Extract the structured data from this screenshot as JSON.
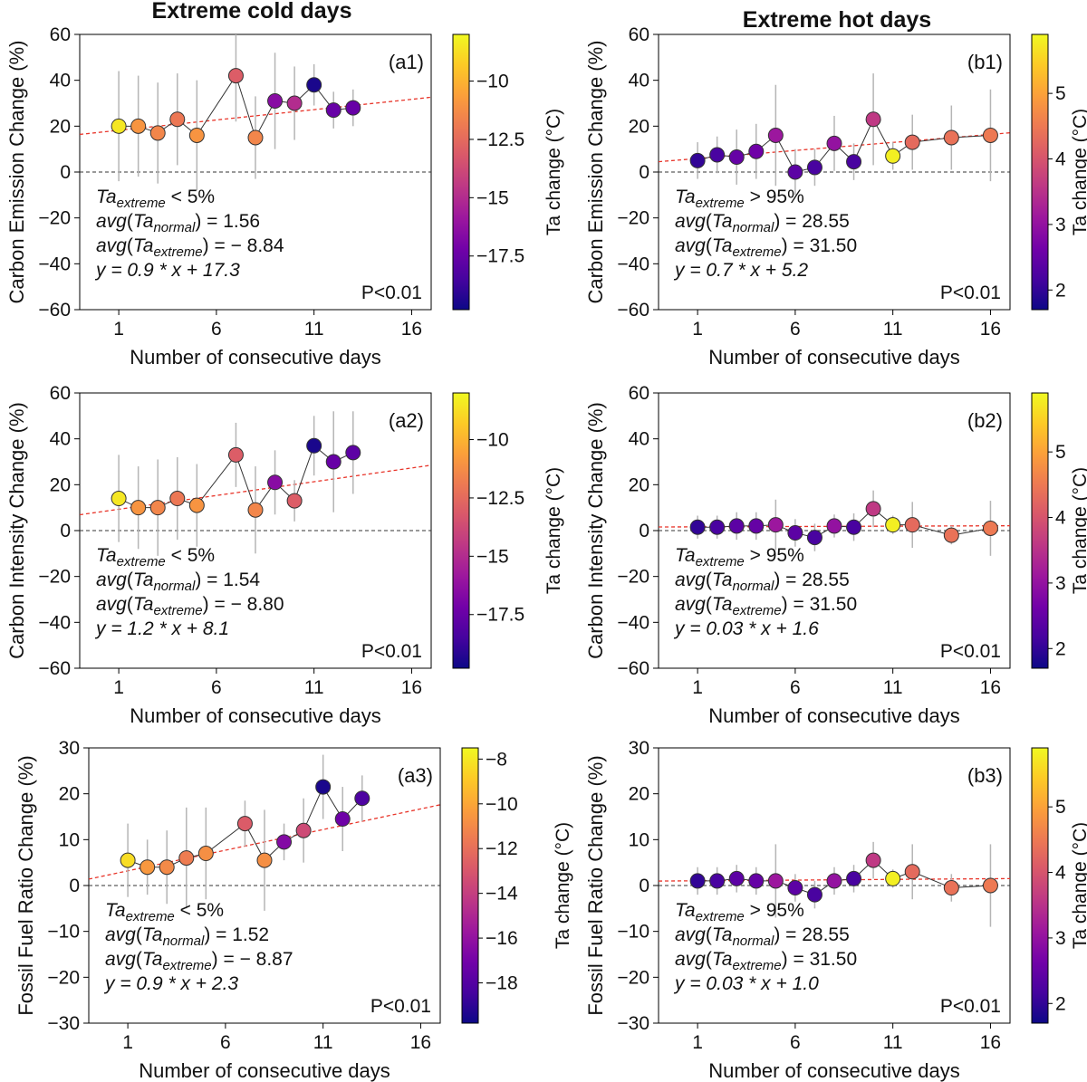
{
  "column_titles": [
    "Extreme cold days",
    "Extreme hot days"
  ],
  "colormap": {
    "name": "plasma",
    "stops": [
      "#0d0887",
      "#46039f",
      "#7201a8",
      "#9c179e",
      "#bd3786",
      "#d8576b",
      "#ed7953",
      "#fb9f3a",
      "#fdca26",
      "#f0f921"
    ]
  },
  "chart_data": [
    {
      "id": "a1",
      "type": "scatter",
      "panel_label": "(a1)",
      "xlabel": "Number of consecutive days",
      "ylabel": "Carbon Emission Change (%)",
      "xlim": [
        -1,
        17
      ],
      "ylim": [
        -60,
        60
      ],
      "xticks": [
        1,
        6,
        11,
        16
      ],
      "yticks": [
        -60,
        -40,
        -20,
        0,
        20,
        40,
        60
      ],
      "x": [
        1,
        2,
        3,
        4,
        5,
        7,
        8,
        9,
        10,
        11,
        12,
        13
      ],
      "y": [
        20,
        20,
        17,
        23,
        16,
        42,
        15,
        31,
        30,
        38,
        27,
        28
      ],
      "err": [
        24,
        22,
        22,
        20,
        24,
        20,
        18,
        21,
        16,
        9,
        8,
        8
      ],
      "ta_change": [
        -8.5,
        -11,
        -11.5,
        -12,
        -11,
        -13,
        -11.5,
        -16.5,
        -15,
        -19.5,
        -17.5,
        -17.5
      ],
      "fit": {
        "slope": 0.9,
        "intercept": 17.3
      },
      "colorbar": {
        "label": "Ta change (°C)",
        "range": [
          -19.8,
          -8.0
        ],
        "ticks": [
          -17.5,
          -15.0,
          -12.5,
          -10.0
        ]
      },
      "annotation": {
        "condition_op": "<",
        "condition_val": "5%",
        "avg_normal": "1.56",
        "avg_extreme": "− 8.84",
        "fit_eq": "y = 0.9 * x + 17.3",
        "pvalue": "P<0.01"
      }
    },
    {
      "id": "b1",
      "type": "scatter",
      "panel_label": "(b1)",
      "xlabel": "Number of consecutive days",
      "ylabel": "Carbon Emission Change (%)",
      "xlim": [
        -1,
        17
      ],
      "ylim": [
        -60,
        60
      ],
      "xticks": [
        1,
        6,
        11,
        16
      ],
      "yticks": [
        -60,
        -40,
        -20,
        0,
        20,
        40,
        60
      ],
      "x": [
        1,
        2,
        3,
        4,
        5,
        6,
        7,
        8,
        9,
        10,
        11,
        12,
        14,
        16
      ],
      "y": [
        5,
        7.5,
        6.5,
        9,
        16,
        0,
        2,
        12.5,
        4.5,
        23,
        7,
        13,
        15,
        16
      ],
      "err": [
        8,
        8,
        12,
        12,
        22,
        10,
        8,
        12,
        8,
        20,
        6,
        12,
        14,
        20
      ],
      "ta_change": [
        2.0,
        2.2,
        2.5,
        2.6,
        3.1,
        2.4,
        2.2,
        3.0,
        2.2,
        3.6,
        5.8,
        4.3,
        4.4,
        4.5
      ],
      "fit": {
        "slope": 0.7,
        "intercept": 5.2
      },
      "colorbar": {
        "label": "Ta change (°C)",
        "range": [
          1.7,
          5.9
        ],
        "ticks": [
          2,
          3,
          4,
          5
        ]
      },
      "annotation": {
        "condition_op": ">",
        "condition_val": "95%",
        "avg_normal": "28.55",
        "avg_extreme": "31.50",
        "fit_eq": "y = 0.7 * x + 5.2",
        "pvalue": "P<0.01"
      }
    },
    {
      "id": "a2",
      "type": "scatter",
      "panel_label": "(a2)",
      "xlabel": "Number of consecutive days",
      "ylabel": "Carbon Intensity Change (%)",
      "xlim": [
        -1,
        17
      ],
      "ylim": [
        -60,
        60
      ],
      "xticks": [
        1,
        6,
        11,
        16
      ],
      "yticks": [
        -60,
        -40,
        -20,
        0,
        20,
        40,
        60
      ],
      "x": [
        1,
        2,
        3,
        4,
        5,
        7,
        8,
        9,
        10,
        11,
        12,
        13
      ],
      "y": [
        14,
        10,
        10,
        14,
        11,
        33,
        9,
        21,
        13,
        37,
        30,
        34
      ],
      "err": [
        19,
        18,
        21,
        18,
        18,
        14,
        19,
        14,
        9,
        13,
        22,
        18
      ],
      "ta_change": [
        -8.5,
        -11,
        -11.5,
        -12,
        -11,
        -13,
        -11.5,
        -16.5,
        -13,
        -19.5,
        -17.5,
        -17.8
      ],
      "fit": {
        "slope": 1.2,
        "intercept": 8.1
      },
      "colorbar": {
        "label": "Ta change (°C)",
        "range": [
          -19.8,
          -8.0
        ],
        "ticks": [
          -17.5,
          -15.0,
          -12.5,
          -10.0
        ]
      },
      "annotation": {
        "condition_op": "<",
        "condition_val": "5%",
        "avg_normal": "1.54",
        "avg_extreme": "− 8.80",
        "fit_eq": "y = 1.2 * x + 8.1",
        "pvalue": "P<0.01"
      }
    },
    {
      "id": "b2",
      "type": "scatter",
      "panel_label": "(b2)",
      "xlabel": "Number of consecutive days",
      "ylabel": "Carbon Intensity Change (%)",
      "xlim": [
        -1,
        17
      ],
      "ylim": [
        -60,
        60
      ],
      "xticks": [
        1,
        6,
        11,
        16
      ],
      "yticks": [
        -60,
        -40,
        -20,
        0,
        20,
        40,
        60
      ],
      "x": [
        1,
        2,
        3,
        4,
        5,
        6,
        7,
        8,
        9,
        10,
        11,
        12,
        14,
        16
      ],
      "y": [
        1.5,
        1.5,
        2,
        2,
        2.5,
        -1,
        -3,
        2,
        1.5,
        9.5,
        2.5,
        2.5,
        -2,
        1
      ],
      "err": [
        5,
        5,
        6,
        6,
        11,
        6,
        6,
        5,
        6,
        8,
        4,
        10,
        4,
        12
      ],
      "ta_change": [
        2.0,
        2.2,
        2.4,
        2.5,
        3.1,
        2.4,
        2.2,
        3.0,
        2.2,
        3.6,
        5.8,
        4.3,
        4.4,
        4.5
      ],
      "fit": {
        "slope": 0.03,
        "intercept": 1.6
      },
      "colorbar": {
        "label": "Ta change (°C)",
        "range": [
          1.7,
          5.9
        ],
        "ticks": [
          2,
          3,
          4,
          5
        ]
      },
      "annotation": {
        "condition_op": ">",
        "condition_val": "95%",
        "avg_normal": "28.55",
        "avg_extreme": "31.50",
        "fit_eq": "y = 0.03 * x + 1.6",
        "pvalue": "P<0.01"
      }
    },
    {
      "id": "a3",
      "type": "scatter",
      "panel_label": "(a3)",
      "xlabel": "Number of consecutive days",
      "ylabel": "Fossil Fuel Ratio Change (%)",
      "xlim": [
        -1,
        17
      ],
      "ylim": [
        -30,
        30
      ],
      "xticks": [
        1,
        6,
        11,
        16
      ],
      "yticks": [
        -30,
        -20,
        -10,
        0,
        10,
        20,
        30
      ],
      "x": [
        1,
        2,
        3,
        4,
        5,
        7,
        8,
        9,
        10,
        11,
        12,
        13
      ],
      "y": [
        5.5,
        4,
        4,
        6,
        7,
        13.5,
        5.5,
        9.5,
        12,
        21.5,
        14.5,
        19
      ],
      "err": [
        8,
        6,
        8,
        11,
        10,
        5,
        11,
        4,
        7,
        7,
        7,
        5
      ],
      "ta_change": [
        -8.3,
        -10.5,
        -11,
        -11.5,
        -10.8,
        -12.8,
        -10.8,
        -16.5,
        -13.5,
        -19.5,
        -17.2,
        -18.2
      ],
      "fit": {
        "slope": 0.9,
        "intercept": 2.3
      },
      "colorbar": {
        "label": "Ta change (°C)",
        "range": [
          -19.8,
          -7.5
        ],
        "ticks": [
          -18,
          -16,
          -14,
          -12,
          -10,
          -8
        ]
      },
      "annotation": {
        "condition_op": "<",
        "condition_val": "5%",
        "avg_normal": "1.52",
        "avg_extreme": "− 8.87",
        "fit_eq": "y = 0.9 * x + 2.3",
        "pvalue": "P<0.01"
      }
    },
    {
      "id": "b3",
      "type": "scatter",
      "panel_label": "(b3)",
      "xlabel": "Number of consecutive days",
      "ylabel": "Fossil Fuel Ratio Change (%)",
      "xlim": [
        -1,
        17
      ],
      "ylim": [
        -30,
        30
      ],
      "xticks": [
        1,
        6,
        11,
        16
      ],
      "yticks": [
        -30,
        -20,
        -10,
        0,
        10,
        20,
        30
      ],
      "x": [
        1,
        2,
        3,
        4,
        5,
        6,
        7,
        8,
        9,
        10,
        11,
        12,
        14,
        16
      ],
      "y": [
        1,
        1,
        1.5,
        1,
        1,
        -0.5,
        -2,
        1,
        1.5,
        5.5,
        1.5,
        3,
        -0.5,
        0
      ],
      "err": [
        3,
        3,
        3,
        3,
        8,
        3,
        3,
        3,
        3,
        4,
        2,
        6,
        3,
        9
      ],
      "ta_change": [
        2.0,
        2.2,
        2.4,
        2.5,
        3.1,
        2.4,
        2.2,
        3.0,
        2.2,
        3.6,
        5.8,
        4.3,
        4.4,
        4.5
      ],
      "fit": {
        "slope": 0.03,
        "intercept": 1.0
      },
      "colorbar": {
        "label": "Ta change (°C)",
        "range": [
          1.7,
          5.9
        ],
        "ticks": [
          2,
          3,
          4,
          5
        ]
      },
      "annotation": {
        "condition_op": ">",
        "condition_val": "95%",
        "avg_normal": "28.55",
        "avg_extreme": "31.50",
        "fit_eq": "y = 0.03 * x + 1.0",
        "pvalue": "P<0.01"
      }
    }
  ]
}
